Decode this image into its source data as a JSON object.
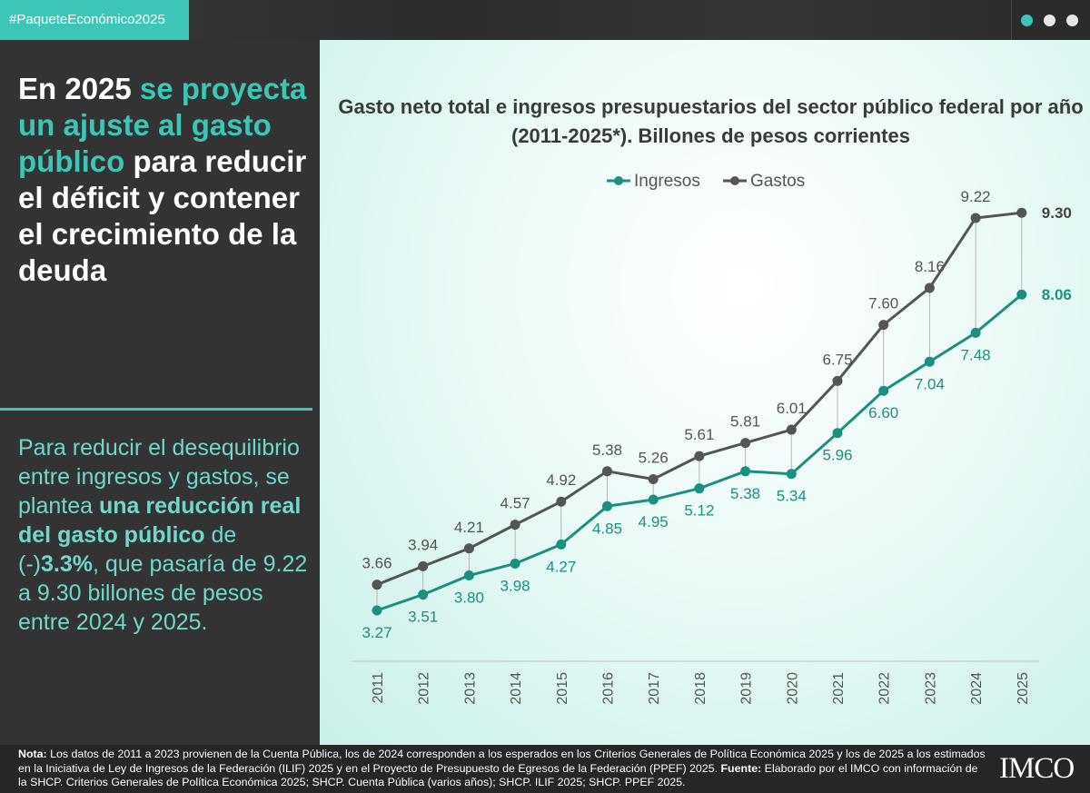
{
  "header": {
    "hashtag": "#PaqueteEconómico2025"
  },
  "left_panel": {
    "headline_parts": [
      "En 2025 ",
      "se proyecta un ajuste al gasto público",
      " para reducir el déficit y contener el crecimiento de la deuda"
    ],
    "body_parts": [
      "Para reducir el desequilibrio entre ingresos y gastos, se plantea ",
      "una reducción real del gasto público",
      " de (-)",
      "3.3%",
      ", que pasaría de 9.22 a 9.30 billones de pesos entre 2024 y 2025."
    ]
  },
  "footer": {
    "note_label": "Nota:",
    "note_text": " Los datos de 2011 a 2023 provienen de la Cuenta Pública, los de 2024 corresponden a los esperados en los Criterios Generales de Política Económica 2025 y los de 2025 a los estimados en la Iniciativa de Ley de Ingresos de la Federación (ILIF) 2025 y en el Proyecto de Presupuesto de Egresos de la Federación (PPEF) 2025. ",
    "source_label": "Fuente:",
    "source_text": " Elaborado por el IMCO con información de la SHCP. Criterios Generales de Política Económica 2025; SHCP. Cuenta Pública (varios años); SHCP. ILIF 2025; SHCP. PPEF 2025.",
    "logo_text": "IMCO"
  },
  "colors": {
    "accent": "#3cc6b7",
    "ingresos": "#1a9081",
    "gastos": "#555555",
    "dot1": "#3cc6b7",
    "dot2": "#e6e6e6",
    "dot3": "#e6e6e6"
  },
  "icons": {
    "dots": [
      "indicator-dot-active",
      "indicator-dot",
      "indicator-dot"
    ],
    "logo": "imco-logo"
  },
  "chart_data": {
    "type": "line",
    "title": "Gasto neto total e ingresos presupuestarios del sector público federal por año (2011-2025*). Billones de pesos corrientes",
    "xlabel": "",
    "ylabel": "",
    "categories": [
      "2011",
      "2012",
      "2013",
      "2014",
      "2015",
      "2016",
      "2017",
      "2018",
      "2019",
      "2020",
      "2021",
      "2022",
      "2023",
      "2024",
      "2025"
    ],
    "series": [
      {
        "name": "Ingresos",
        "values": [
          3.27,
          3.51,
          3.8,
          3.98,
          4.27,
          4.85,
          4.95,
          5.12,
          5.38,
          5.34,
          5.96,
          6.6,
          7.04,
          7.48,
          8.06
        ],
        "labels": [
          "3.27",
          "3.51",
          "3.80",
          "3.98",
          "4.27",
          "4.85",
          "4.95",
          "5.12",
          "5.38",
          "5.34",
          "5.96",
          "6.60",
          "7.04",
          "7.48",
          "8.06"
        ]
      },
      {
        "name": "Gastos",
        "values": [
          3.66,
          3.94,
          4.21,
          4.57,
          4.92,
          5.38,
          5.26,
          5.61,
          5.81,
          6.01,
          6.75,
          7.6,
          8.16,
          9.22,
          9.3
        ],
        "labels": [
          "3.66",
          "3.94",
          "4.21",
          "4.57",
          "4.92",
          "5.38",
          "5.26",
          "5.61",
          "5.81",
          "6.01",
          "6.75",
          "7.60",
          "8.16",
          "9.22",
          "9.30"
        ]
      }
    ],
    "ylim": [
      2.6,
      9.6
    ],
    "grid": false,
    "legend": "top-center",
    "data_labels": true,
    "drop_lines": true
  }
}
